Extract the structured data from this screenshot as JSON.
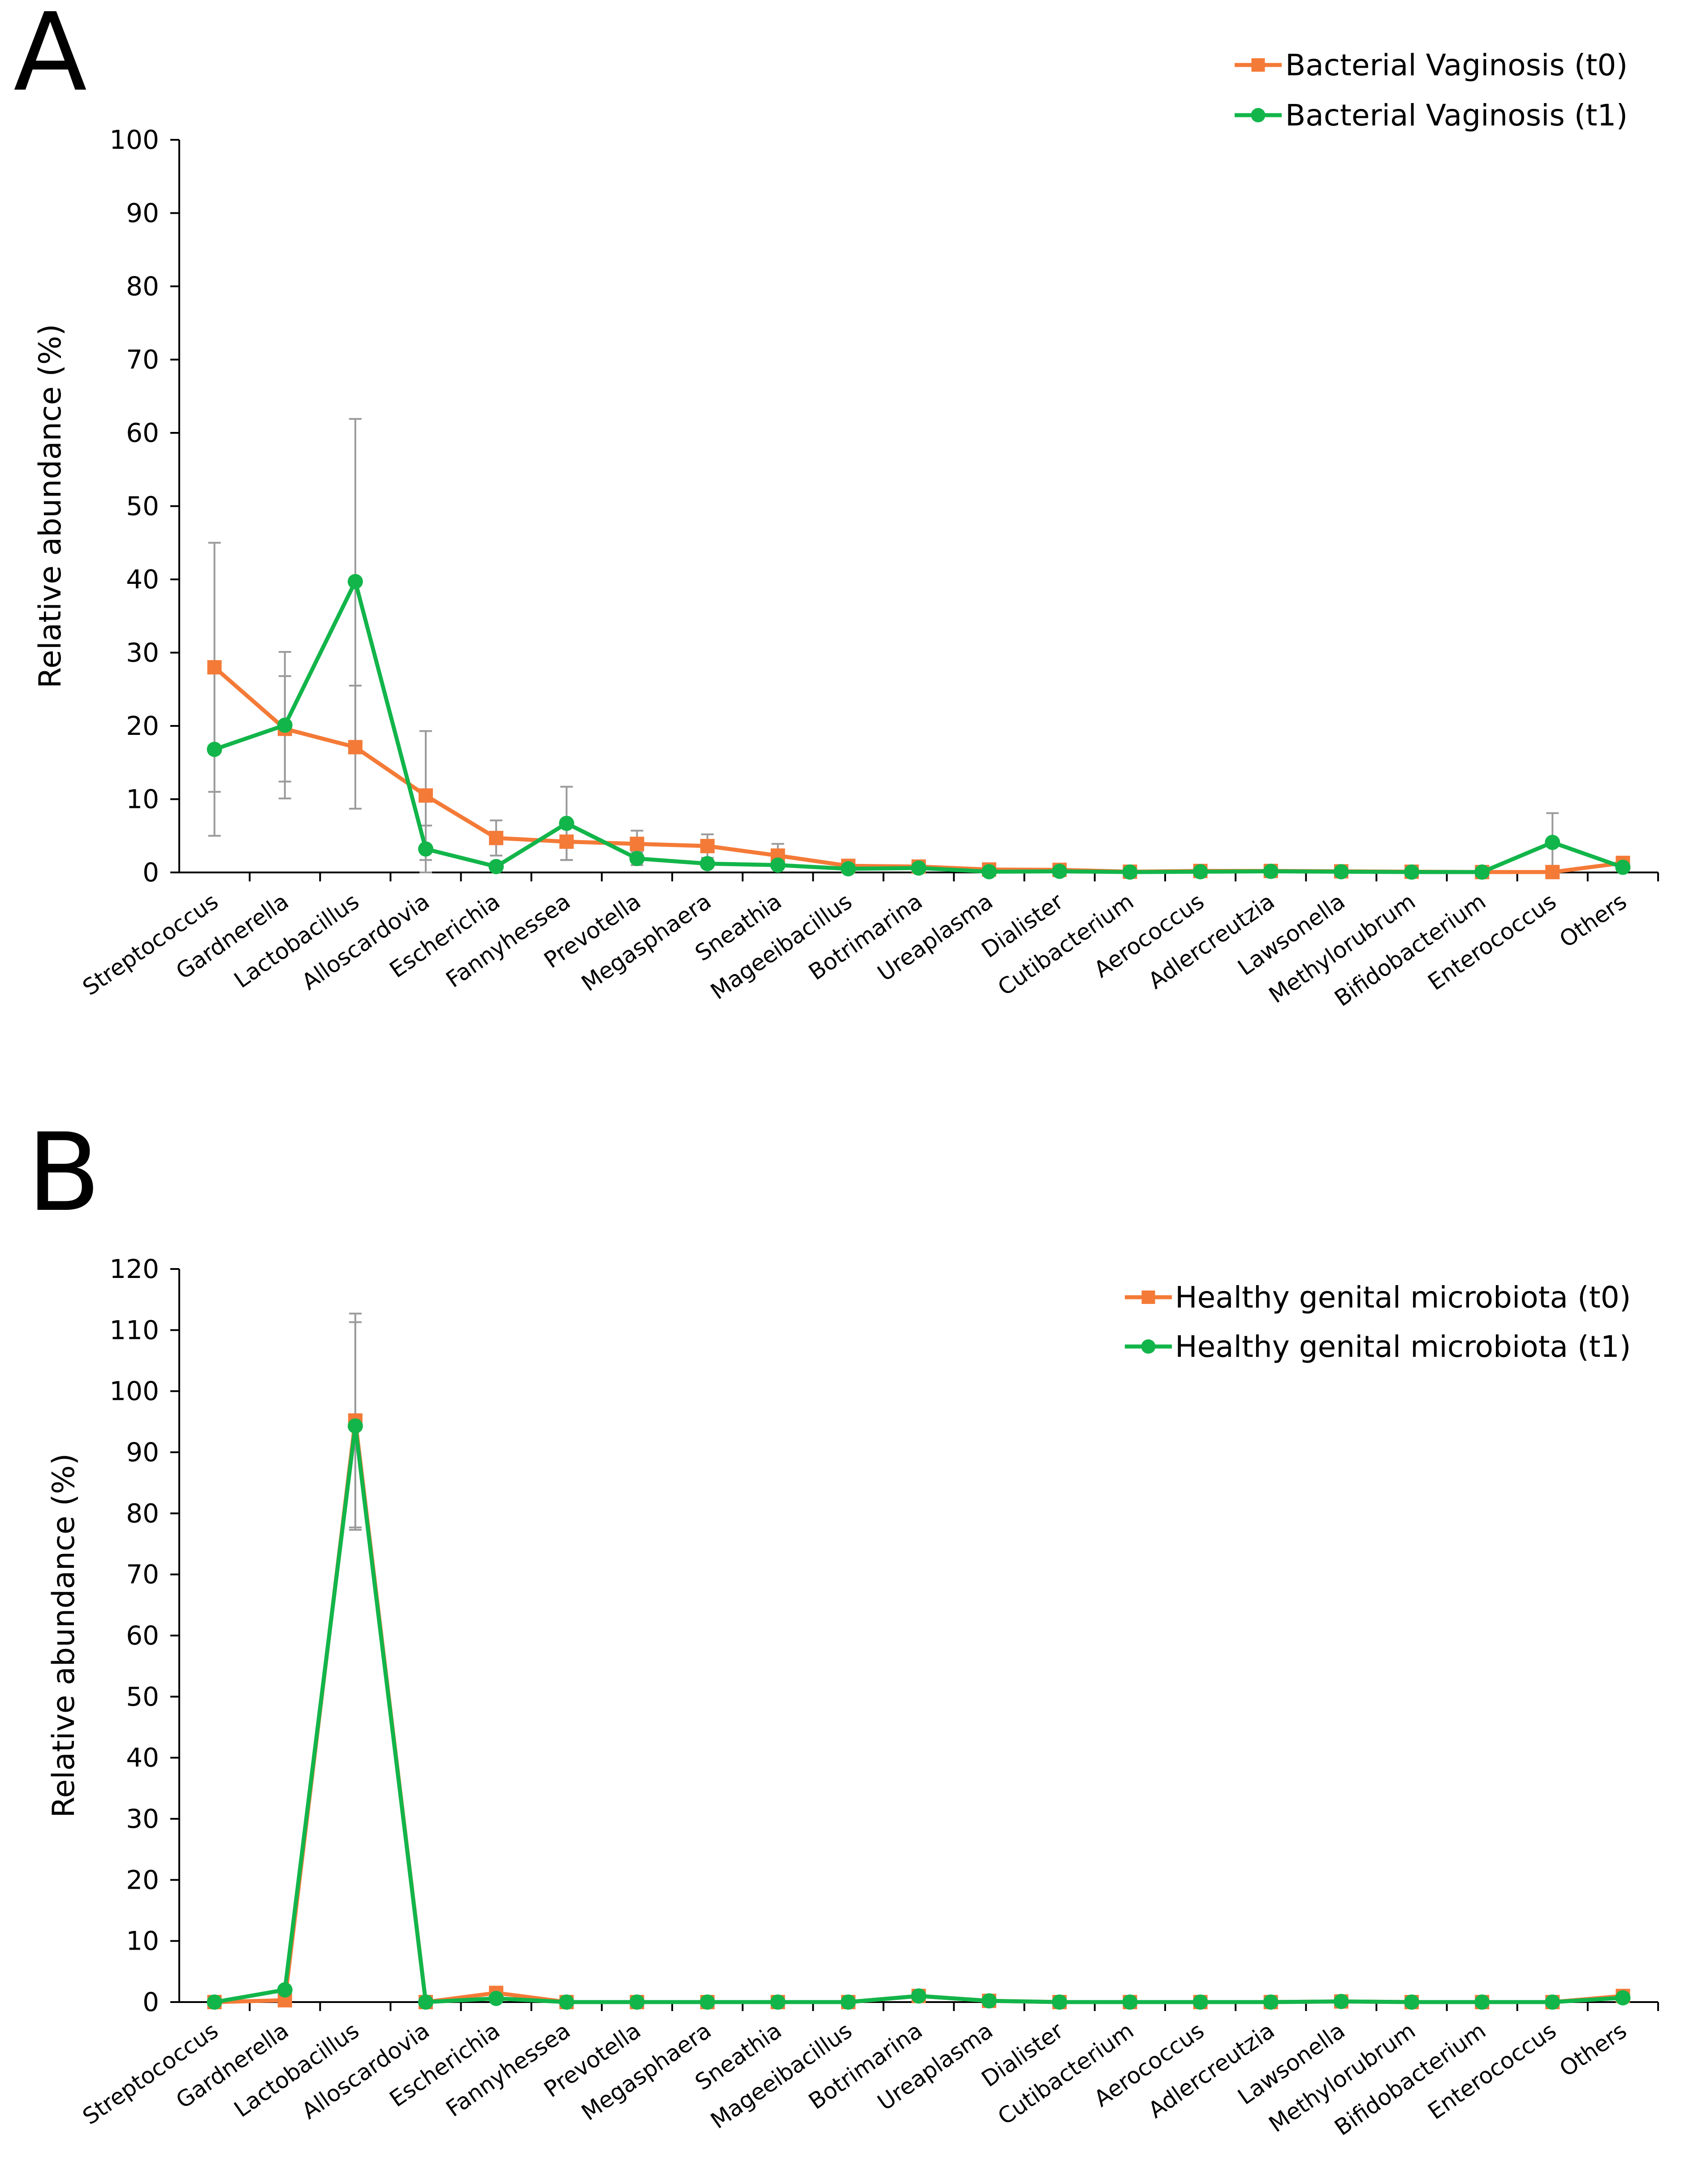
{
  "colors": {
    "t0": "#F47A37",
    "t1": "#12B54A",
    "axis": "#000000",
    "errorbar": "#9A9A9A"
  },
  "chart_data": [
    {
      "type": "line",
      "panel_label": "A",
      "ylabel": "Relative abundance (%)",
      "xlabel": "",
      "ylim": [
        0,
        100
      ],
      "ytick_step": 10,
      "legend_position": "top-right",
      "categories": [
        "Streptococcus",
        "Gardnerella",
        "Lactobacillus",
        "Alloscardovia",
        "Escherichia",
        "Fannyhessea",
        "Prevotella",
        "Megasphaera",
        "Sneathia",
        "Mageeibacillus",
        "Botrimarina",
        "Ureaplasma",
        "Dialister",
        "Cutibacterium",
        "Aerococcus",
        "Adlercreutzia",
        "Lawsonella",
        "Methylorubrum",
        "Bifidobacterium",
        "Enterococcus",
        "Others"
      ],
      "series": [
        {
          "name": "Bacterial Vaginosis (t0)",
          "color_key": "t0",
          "marker": "square",
          "values": [
            28.0,
            19.6,
            17.1,
            10.5,
            4.7,
            4.2,
            3.9,
            3.6,
            2.3,
            0.9,
            0.8,
            0.4,
            0.35,
            0.1,
            0.2,
            0.2,
            0.15,
            0.1,
            0.05,
            0.05,
            1.3
          ],
          "error": [
            17.0,
            7.2,
            8.4,
            8.8,
            2.4,
            2.5,
            1.8,
            1.6,
            1.6,
            0.4,
            0.3,
            0.2,
            0.1,
            0,
            0,
            0,
            0,
            0,
            0,
            0,
            0
          ]
        },
        {
          "name": "Bacterial Vaginosis (t1)",
          "color_key": "t1",
          "marker": "circle",
          "values": [
            16.8,
            20.1,
            39.7,
            3.2,
            0.8,
            6.7,
            1.9,
            1.2,
            1.0,
            0.5,
            0.6,
            0.1,
            0.15,
            0.05,
            0.1,
            0.15,
            0.1,
            0.05,
            0.05,
            4.1,
            0.7
          ],
          "error": [
            11.8,
            10.0,
            22.2,
            3.2,
            0.5,
            5.0,
            0.9,
            0.5,
            0.5,
            0.2,
            0.2,
            0,
            0,
            0,
            0,
            0,
            0,
            0,
            0,
            4.0,
            0
          ]
        }
      ]
    },
    {
      "type": "line",
      "panel_label": "B",
      "ylabel": "Relative abundance (%)",
      "xlabel": "",
      "ylim": [
        0,
        120
      ],
      "ytick_step": 10,
      "legend_position": "top-right",
      "categories": [
        "Streptococcus",
        "Gardnerella",
        "Lactobacillus",
        "Alloscardovia",
        "Escherichia",
        "Fannyhessea",
        "Prevotella",
        "Megasphaera",
        "Sneathia",
        "Mageeibacillus",
        "Botrimarina",
        "Ureaplasma",
        "Dialister",
        "Cutibacterium",
        "Aerococcus",
        "Adlercreutzia",
        "Lawsonella",
        "Methylorubrum",
        "Bifidobacterium",
        "Enterococcus",
        "Others"
      ],
      "series": [
        {
          "name": "Healthy genital microbiota (t0)",
          "color_key": "t0",
          "marker": "square",
          "values": [
            0,
            0.3,
            95.2,
            0,
            1.5,
            0,
            0,
            0,
            0,
            0,
            1.0,
            0.2,
            0,
            0,
            0,
            0,
            0.1,
            0,
            0,
            0,
            1.0
          ],
          "error": [
            0,
            0,
            17.5,
            0,
            0,
            0,
            0,
            0,
            0,
            0,
            0,
            0,
            0,
            0,
            0,
            0,
            0,
            0,
            0,
            0,
            0
          ]
        },
        {
          "name": "Healthy genital microbiota (t1)",
          "color_key": "t1",
          "marker": "circle",
          "values": [
            0,
            2.0,
            94.3,
            0,
            0.6,
            0,
            0,
            0,
            0,
            0,
            1.0,
            0.2,
            0,
            0,
            0,
            0,
            0.1,
            0,
            0,
            0,
            0.7
          ],
          "error": [
            0,
            0,
            17.0,
            0,
            0,
            0,
            0,
            0,
            0,
            0,
            0,
            0,
            0,
            0,
            0,
            0,
            0,
            0,
            0,
            0,
            0
          ]
        }
      ]
    }
  ]
}
